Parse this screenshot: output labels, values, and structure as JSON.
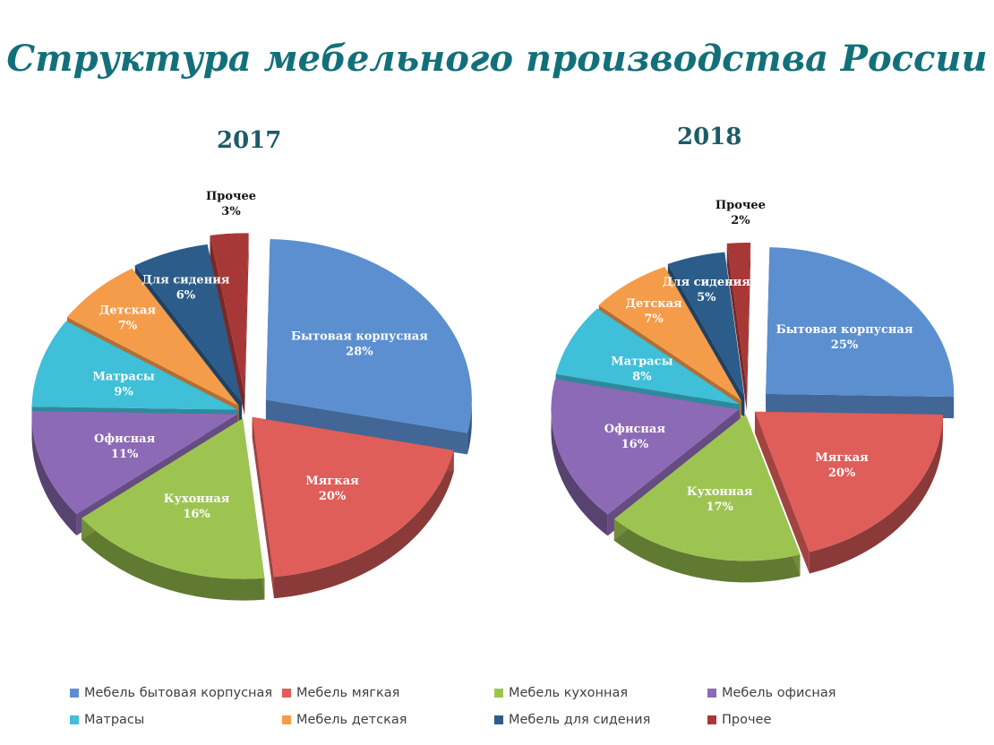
{
  "page": {
    "title": "Структура мебельного производства России"
  },
  "colors": {
    "household": "#5b8fd0",
    "soft": "#df5e5a",
    "kitchen": "#9dc451",
    "office": "#8c6ab5",
    "mattress": "#3fbfd8",
    "children": "#f59c4a",
    "seating": "#2b5c8a",
    "other": "#a83837"
  },
  "legend": [
    {
      "key": "household",
      "label": "Мебель бытовая корпусная"
    },
    {
      "key": "soft",
      "label": "Мебель мягкая"
    },
    {
      "key": "kitchen",
      "label": "Мебель кухонная"
    },
    {
      "key": "office",
      "label": "Мебель офисная"
    },
    {
      "key": "mattress",
      "label": "Матрасы"
    },
    {
      "key": "children",
      "label": "Мебель детская"
    },
    {
      "key": "seating",
      "label": "Мебель для сидения"
    },
    {
      "key": "other",
      "label": "Прочее"
    }
  ],
  "chart_data": [
    {
      "type": "pie",
      "title": "2017",
      "exploded": true,
      "three_d": true,
      "legend_position": "bottom",
      "slices": [
        {
          "key": "household",
          "label": "Бытовая корпусная",
          "value_label": "28%",
          "value": 28
        },
        {
          "key": "soft",
          "label": "Мягкая",
          "value_label": "20%",
          "value": 20
        },
        {
          "key": "kitchen",
          "label": "Кухонная",
          "value_label": "16%",
          "value": 16
        },
        {
          "key": "office",
          "label": "Офисная",
          "value_label": "11%",
          "value": 11
        },
        {
          "key": "mattress",
          "label": "Матрасы",
          "value_label": "9%",
          "value": 9
        },
        {
          "key": "children",
          "label": "Детская",
          "value_label": "7%",
          "value": 7
        },
        {
          "key": "seating",
          "label": "Для сидения",
          "value_label": "6%",
          "value": 6
        },
        {
          "key": "other",
          "label": "Прочее",
          "value_label": "3%",
          "value": 3
        }
      ]
    },
    {
      "type": "pie",
      "title": "2018",
      "exploded": true,
      "three_d": true,
      "legend_position": "bottom",
      "slices": [
        {
          "key": "household",
          "label": "Бытовая корпусная",
          "value_label": "25%",
          "value": 25
        },
        {
          "key": "soft",
          "label": "Мягкая",
          "value_label": "20%",
          "value": 20
        },
        {
          "key": "kitchen",
          "label": "Кухонная",
          "value_label": "17%",
          "value": 17
        },
        {
          "key": "office",
          "label": "Офисная",
          "value_label": "16%",
          "value": 16
        },
        {
          "key": "mattress",
          "label": "Матрасы",
          "value_label": "8%",
          "value": 8
        },
        {
          "key": "children",
          "label": "Детская",
          "value_label": "7%",
          "value": 7
        },
        {
          "key": "seating",
          "label": "Для сидения",
          "value_label": "5%",
          "value": 5
        },
        {
          "key": "other",
          "label": "Прочее",
          "value_label": "2%",
          "value": 2
        }
      ]
    }
  ]
}
